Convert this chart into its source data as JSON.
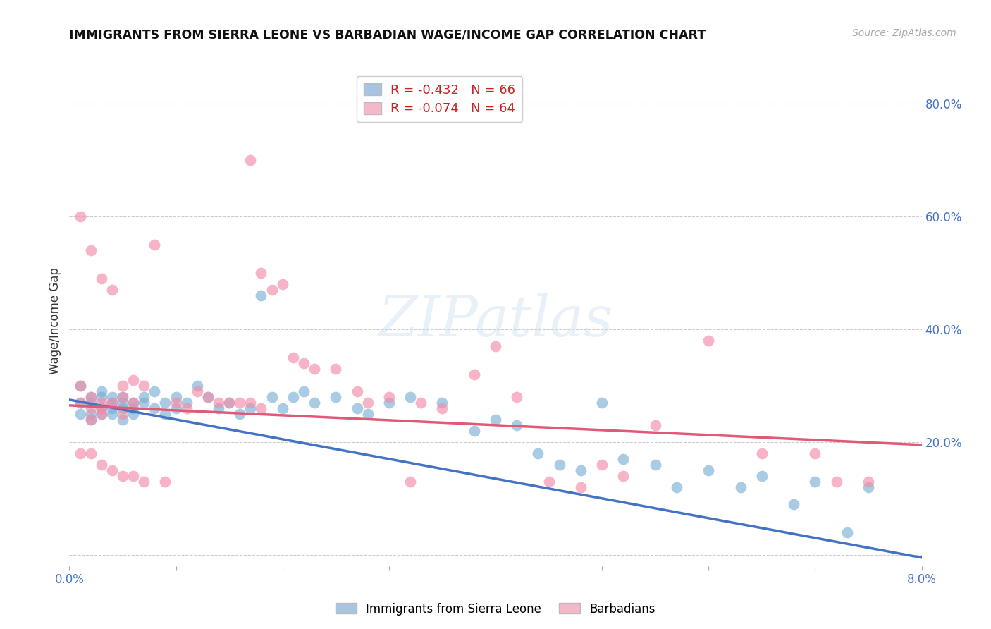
{
  "title": "IMMIGRANTS FROM SIERRA LEONE VS BARBADIAN WAGE/INCOME GAP CORRELATION CHART",
  "source": "Source: ZipAtlas.com",
  "ylabel": "Wage/Income Gap",
  "series1_color": "#7bafd4",
  "series2_color": "#f48ca8",
  "trend1_color": "#4472c4",
  "trend2_color": "#e05a78",
  "watermark": "ZIPatlas",
  "background_color": "#ffffff",
  "series1": {
    "x": [
      0.001,
      0.001,
      0.001,
      0.002,
      0.002,
      0.002,
      0.002,
      0.003,
      0.003,
      0.003,
      0.003,
      0.004,
      0.004,
      0.004,
      0.004,
      0.005,
      0.005,
      0.005,
      0.005,
      0.006,
      0.006,
      0.006,
      0.007,
      0.007,
      0.008,
      0.008,
      0.009,
      0.009,
      0.01,
      0.01,
      0.011,
      0.012,
      0.013,
      0.014,
      0.015,
      0.016,
      0.017,
      0.018,
      0.019,
      0.02,
      0.021,
      0.022,
      0.023,
      0.025,
      0.027,
      0.028,
      0.03,
      0.032,
      0.035,
      0.038,
      0.04,
      0.042,
      0.044,
      0.046,
      0.048,
      0.05,
      0.052,
      0.055,
      0.06,
      0.065,
      0.07,
      0.075,
      0.057,
      0.063,
      0.068,
      0.073
    ],
    "y": [
      0.3,
      0.27,
      0.25,
      0.28,
      0.27,
      0.25,
      0.24,
      0.29,
      0.28,
      0.26,
      0.25,
      0.27,
      0.26,
      0.28,
      0.25,
      0.27,
      0.26,
      0.24,
      0.28,
      0.27,
      0.26,
      0.25,
      0.28,
      0.27,
      0.29,
      0.26,
      0.27,
      0.25,
      0.26,
      0.28,
      0.27,
      0.3,
      0.28,
      0.26,
      0.27,
      0.25,
      0.26,
      0.46,
      0.28,
      0.26,
      0.28,
      0.29,
      0.27,
      0.28,
      0.26,
      0.25,
      0.27,
      0.28,
      0.27,
      0.22,
      0.24,
      0.23,
      0.18,
      0.16,
      0.15,
      0.27,
      0.17,
      0.16,
      0.15,
      0.14,
      0.13,
      0.12,
      0.12,
      0.12,
      0.09,
      0.04
    ]
  },
  "series2": {
    "x": [
      0.001,
      0.001,
      0.001,
      0.002,
      0.002,
      0.002,
      0.002,
      0.003,
      0.003,
      0.003,
      0.003,
      0.004,
      0.004,
      0.005,
      0.005,
      0.005,
      0.006,
      0.006,
      0.007,
      0.007,
      0.008,
      0.009,
      0.01,
      0.011,
      0.012,
      0.013,
      0.014,
      0.015,
      0.016,
      0.017,
      0.018,
      0.019,
      0.02,
      0.021,
      0.022,
      0.023,
      0.025,
      0.027,
      0.028,
      0.03,
      0.032,
      0.033,
      0.035,
      0.038,
      0.04,
      0.042,
      0.045,
      0.048,
      0.05,
      0.052,
      0.055,
      0.06,
      0.065,
      0.07,
      0.072,
      0.075,
      0.001,
      0.002,
      0.003,
      0.004,
      0.005,
      0.006,
      0.017,
      0.018
    ],
    "y": [
      0.3,
      0.27,
      0.18,
      0.28,
      0.26,
      0.24,
      0.18,
      0.27,
      0.26,
      0.25,
      0.16,
      0.27,
      0.15,
      0.28,
      0.25,
      0.14,
      0.27,
      0.14,
      0.3,
      0.13,
      0.55,
      0.13,
      0.27,
      0.26,
      0.29,
      0.28,
      0.27,
      0.27,
      0.27,
      0.7,
      0.5,
      0.47,
      0.48,
      0.35,
      0.34,
      0.33,
      0.33,
      0.29,
      0.27,
      0.28,
      0.13,
      0.27,
      0.26,
      0.32,
      0.37,
      0.28,
      0.13,
      0.12,
      0.16,
      0.14,
      0.23,
      0.38,
      0.18,
      0.18,
      0.13,
      0.13,
      0.6,
      0.54,
      0.49,
      0.47,
      0.3,
      0.31,
      0.27,
      0.26
    ]
  },
  "xlim": [
    0.0,
    0.08
  ],
  "ylim": [
    -0.02,
    0.85
  ],
  "trend1_x0": 0.0,
  "trend1_x1": 0.08,
  "trend1_y0": 0.275,
  "trend1_y1": -0.005,
  "trend2_x0": 0.0,
  "trend2_x1": 0.08,
  "trend2_y0": 0.265,
  "trend2_y1": 0.195,
  "tick_vals": [
    0.0,
    0.2,
    0.4,
    0.6,
    0.8
  ],
  "tick_labels": [
    "",
    "20.0%",
    "40.0%",
    "60.0%",
    "80.0%"
  ],
  "xtick_positions": [
    0.0,
    0.01,
    0.02,
    0.03,
    0.04,
    0.05,
    0.06,
    0.07,
    0.08
  ],
  "xtick_labels": [
    "0.0%",
    "",
    "",
    "",
    "",
    "",
    "",
    "",
    "8.0%"
  ],
  "legend_entries": [
    {
      "label": "R = -0.432   N = 66",
      "color": "#a8c4e0"
    },
    {
      "label": "R = -0.074   N = 64",
      "color": "#f4b8c8"
    }
  ],
  "bottom_legend": [
    "Immigrants from Sierra Leone",
    "Barbadians"
  ]
}
